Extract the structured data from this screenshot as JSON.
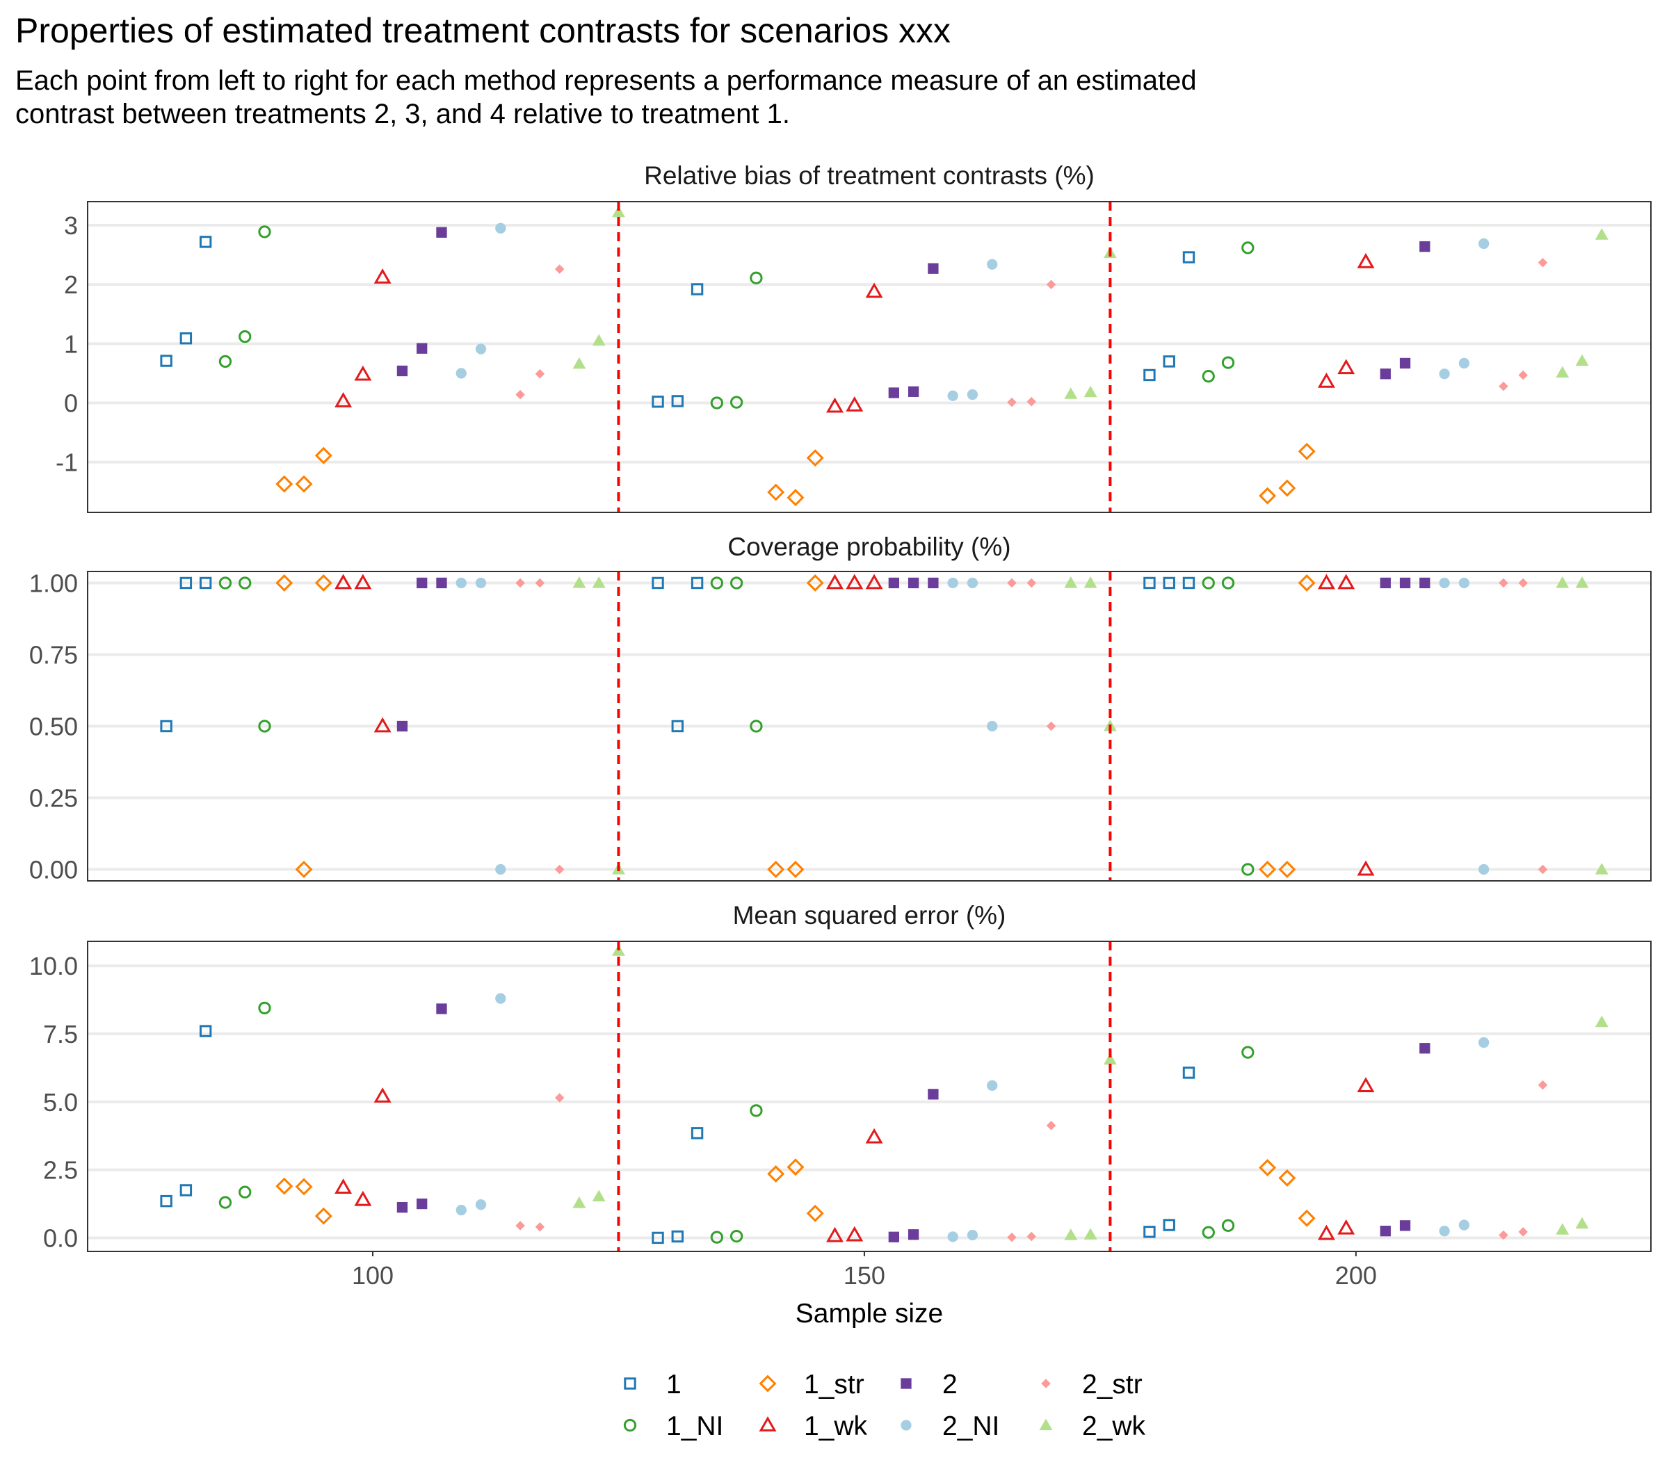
{
  "title": "Properties of estimated treatment contrasts for scenarios xxx",
  "subtitle_lines": [
    "Each point from left to right for each method represents a performance measure of an estimated",
    "contrast between treatments 2, 3, and 4 relative to treatment 1."
  ],
  "chart_data": {
    "type": "scatter",
    "xlabel": "Sample size",
    "x_ticks": [
      100,
      150,
      200
    ],
    "xlim": [
      71,
      230
    ],
    "vlines": [
      125,
      175
    ],
    "vline_style": "red dashed",
    "grid": true,
    "legend_position": "bottom",
    "series": [
      {
        "name": "1",
        "shape": "square-open",
        "color": "#1f78b4"
      },
      {
        "name": "1_NI",
        "shape": "circle-open",
        "color": "#33a02c"
      },
      {
        "name": "1_str",
        "shape": "diamond-open",
        "color": "#ff7f00"
      },
      {
        "name": "1_wk",
        "shape": "triangle-open",
        "color": "#e31a1c"
      },
      {
        "name": "2",
        "shape": "square",
        "color": "#6a3d9a"
      },
      {
        "name": "2_NI",
        "shape": "circle",
        "color": "#a6cee3"
      },
      {
        "name": "2_str",
        "shape": "diamond",
        "color": "#fb9a99"
      },
      {
        "name": "2_wk",
        "shape": "triangle",
        "color": "#b2df8a"
      }
    ],
    "panels": [
      {
        "title": "Relative bias of treatment contrasts (%)",
        "ylim": [
          -1.85,
          3.4
        ],
        "y_ticks": [
          3,
          2,
          1,
          0,
          -1
        ],
        "y_tick_labels": [
          "3",
          "2",
          "1",
          "0",
          "-1"
        ],
        "points": {
          "1": [
            [
              79,
              0.71
            ],
            [
              81,
              1.09
            ],
            [
              83,
              2.72
            ],
            [
              129,
              0.02
            ],
            [
              131,
              0.03
            ],
            [
              133,
              1.92
            ],
            [
              179,
              0.47
            ],
            [
              181,
              0.7
            ],
            [
              183,
              2.46
            ]
          ],
          "1_NI": [
            [
              85,
              0.7
            ],
            [
              87,
              1.12
            ],
            [
              89,
              2.89
            ],
            [
              135,
              0.0
            ],
            [
              137,
              0.01
            ],
            [
              139,
              2.11
            ],
            [
              185,
              0.45
            ],
            [
              187,
              0.68
            ],
            [
              189,
              2.62
            ]
          ],
          "1_str": [
            [
              91,
              -1.37
            ],
            [
              93,
              -1.37
            ],
            [
              95,
              -0.89
            ],
            [
              141,
              -1.51
            ],
            [
              143,
              -1.6
            ],
            [
              145,
              -0.93
            ],
            [
              191,
              -1.57
            ],
            [
              193,
              -1.44
            ],
            [
              195,
              -0.82
            ]
          ],
          "1_wk": [
            [
              97,
              0.03
            ],
            [
              99,
              0.48
            ],
            [
              101,
              2.12
            ],
            [
              147,
              -0.06
            ],
            [
              149,
              -0.04
            ],
            [
              151,
              1.88
            ],
            [
              197,
              0.36
            ],
            [
              199,
              0.59
            ],
            [
              201,
              2.38
            ]
          ],
          "2": [
            [
              103,
              0.54
            ],
            [
              105,
              0.92
            ],
            [
              107,
              2.88
            ],
            [
              153,
              0.17
            ],
            [
              155,
              0.19
            ],
            [
              157,
              2.27
            ],
            [
              203,
              0.49
            ],
            [
              205,
              0.67
            ],
            [
              207,
              2.64
            ]
          ],
          "2_NI": [
            [
              109,
              0.5
            ],
            [
              111,
              0.91
            ],
            [
              113,
              2.95
            ],
            [
              159,
              0.12
            ],
            [
              161,
              0.14
            ],
            [
              163,
              2.34
            ],
            [
              209,
              0.49
            ],
            [
              211,
              0.67
            ],
            [
              213,
              2.69
            ]
          ],
          "2_str": [
            [
              115,
              0.14
            ],
            [
              117,
              0.49
            ],
            [
              119,
              2.26
            ],
            [
              165,
              0.01
            ],
            [
              167,
              0.02
            ],
            [
              169,
              2.0
            ],
            [
              215,
              0.28
            ],
            [
              217,
              0.47
            ],
            [
              219,
              2.37
            ]
          ],
          "2_wk": [
            [
              121,
              0.66
            ],
            [
              123,
              1.05
            ],
            [
              125,
              3.22
            ],
            [
              171,
              0.15
            ],
            [
              173,
              0.18
            ],
            [
              175,
              2.53
            ],
            [
              221,
              0.51
            ],
            [
              223,
              0.71
            ],
            [
              225,
              2.84
            ]
          ]
        }
      },
      {
        "title": "Coverage probability (%)",
        "ylim": [
          -0.04,
          1.04
        ],
        "y_ticks": [
          1,
          0.75,
          0.5,
          0.25,
          0
        ],
        "y_tick_labels": [
          "1.00",
          "0.75",
          "0.50",
          "0.25",
          "0.00"
        ],
        "points": {
          "1": [
            [
              79,
              0.5
            ],
            [
              81,
              1
            ],
            [
              83,
              1
            ],
            [
              129,
              1
            ],
            [
              131,
              0.5
            ],
            [
              133,
              1
            ],
            [
              179,
              1
            ],
            [
              181,
              1
            ],
            [
              183,
              1
            ]
          ],
          "1_NI": [
            [
              85,
              1
            ],
            [
              87,
              1
            ],
            [
              89,
              0.5
            ],
            [
              135,
              1
            ],
            [
              137,
              1
            ],
            [
              139,
              0.5
            ],
            [
              185,
              1
            ],
            [
              187,
              1
            ],
            [
              189,
              0
            ]
          ],
          "1_str": [
            [
              91,
              1
            ],
            [
              93,
              0
            ],
            [
              95,
              1
            ],
            [
              141,
              0
            ],
            [
              143,
              0
            ],
            [
              145,
              1
            ],
            [
              191,
              0
            ],
            [
              193,
              0
            ],
            [
              195,
              1
            ]
          ],
          "1_wk": [
            [
              97,
              1
            ],
            [
              99,
              1
            ],
            [
              101,
              0.5
            ],
            [
              147,
              1
            ],
            [
              149,
              1
            ],
            [
              151,
              1
            ],
            [
              197,
              1
            ],
            [
              199,
              1
            ],
            [
              201,
              0
            ]
          ],
          "2": [
            [
              103,
              0.5
            ],
            [
              105,
              1
            ],
            [
              107,
              1
            ],
            [
              153,
              1
            ],
            [
              155,
              1
            ],
            [
              157,
              1
            ],
            [
              203,
              1
            ],
            [
              205,
              1
            ],
            [
              207,
              1
            ]
          ],
          "2_NI": [
            [
              109,
              1
            ],
            [
              111,
              1
            ],
            [
              113,
              0
            ],
            [
              159,
              1
            ],
            [
              161,
              1
            ],
            [
              163,
              0.5
            ],
            [
              209,
              1
            ],
            [
              211,
              1
            ],
            [
              213,
              0
            ]
          ],
          "2_str": [
            [
              115,
              1
            ],
            [
              117,
              1
            ],
            [
              119,
              0
            ],
            [
              165,
              1
            ],
            [
              167,
              1
            ],
            [
              169,
              0.5
            ],
            [
              215,
              1
            ],
            [
              217,
              1
            ],
            [
              219,
              0
            ]
          ],
          "2_wk": [
            [
              121,
              1
            ],
            [
              123,
              1
            ],
            [
              125,
              0
            ],
            [
              171,
              1
            ],
            [
              173,
              1
            ],
            [
              175,
              0.5
            ],
            [
              221,
              1
            ],
            [
              223,
              1
            ],
            [
              225,
              0
            ]
          ]
        }
      },
      {
        "title": "Mean squared error (%)",
        "ylim": [
          -0.5,
          10.9
        ],
        "y_ticks": [
          10,
          7.5,
          5,
          2.5,
          0
        ],
        "y_tick_labels": [
          "10.0",
          "7.5",
          "5.0",
          "2.5",
          "0.0"
        ],
        "points": {
          "1": [
            [
              79,
              1.35
            ],
            [
              81,
              1.75
            ],
            [
              83,
              7.6
            ],
            [
              129,
              0.0
            ],
            [
              131,
              0.05
            ],
            [
              133,
              3.85
            ],
            [
              179,
              0.22
            ],
            [
              181,
              0.47
            ],
            [
              183,
              6.07
            ]
          ],
          "1_NI": [
            [
              85,
              1.3
            ],
            [
              87,
              1.68
            ],
            [
              89,
              8.45
            ],
            [
              135,
              0.02
            ],
            [
              137,
              0.06
            ],
            [
              139,
              4.68
            ],
            [
              185,
              0.2
            ],
            [
              187,
              0.45
            ],
            [
              189,
              6.82
            ]
          ],
          "1_str": [
            [
              91,
              1.9
            ],
            [
              93,
              1.88
            ],
            [
              95,
              0.8
            ],
            [
              141,
              2.35
            ],
            [
              143,
              2.6
            ],
            [
              145,
              0.9
            ],
            [
              191,
              2.58
            ],
            [
              193,
              2.2
            ],
            [
              195,
              0.72
            ]
          ],
          "1_wk": [
            [
              97,
              1.85
            ],
            [
              99,
              1.4
            ],
            [
              101,
              5.2
            ],
            [
              147,
              0.07
            ],
            [
              149,
              0.1
            ],
            [
              151,
              3.7
            ],
            [
              197,
              0.15
            ],
            [
              199,
              0.35
            ],
            [
              201,
              5.58
            ]
          ],
          "2": [
            [
              103,
              1.12
            ],
            [
              105,
              1.25
            ],
            [
              107,
              8.42
            ],
            [
              153,
              0.03
            ],
            [
              155,
              0.12
            ],
            [
              157,
              5.28
            ],
            [
              203,
              0.25
            ],
            [
              205,
              0.45
            ],
            [
              207,
              6.97
            ]
          ],
          "2_NI": [
            [
              109,
              1.02
            ],
            [
              111,
              1.22
            ],
            [
              113,
              8.8
            ],
            [
              159,
              0.04
            ],
            [
              161,
              0.1
            ],
            [
              163,
              5.6
            ],
            [
              209,
              0.25
            ],
            [
              211,
              0.47
            ],
            [
              213,
              7.18
            ]
          ],
          "2_str": [
            [
              115,
              0.45
            ],
            [
              117,
              0.4
            ],
            [
              119,
              5.15
            ],
            [
              165,
              0.02
            ],
            [
              167,
              0.05
            ],
            [
              169,
              4.13
            ],
            [
              215,
              0.1
            ],
            [
              217,
              0.22
            ],
            [
              219,
              5.62
            ]
          ],
          "2_wk": [
            [
              121,
              1.28
            ],
            [
              123,
              1.52
            ],
            [
              125,
              10.55
            ],
            [
              171,
              0.1
            ],
            [
              173,
              0.12
            ],
            [
              175,
              6.55
            ],
            [
              221,
              0.3
            ],
            [
              223,
              0.52
            ],
            [
              225,
              7.93
            ]
          ]
        }
      }
    ]
  }
}
